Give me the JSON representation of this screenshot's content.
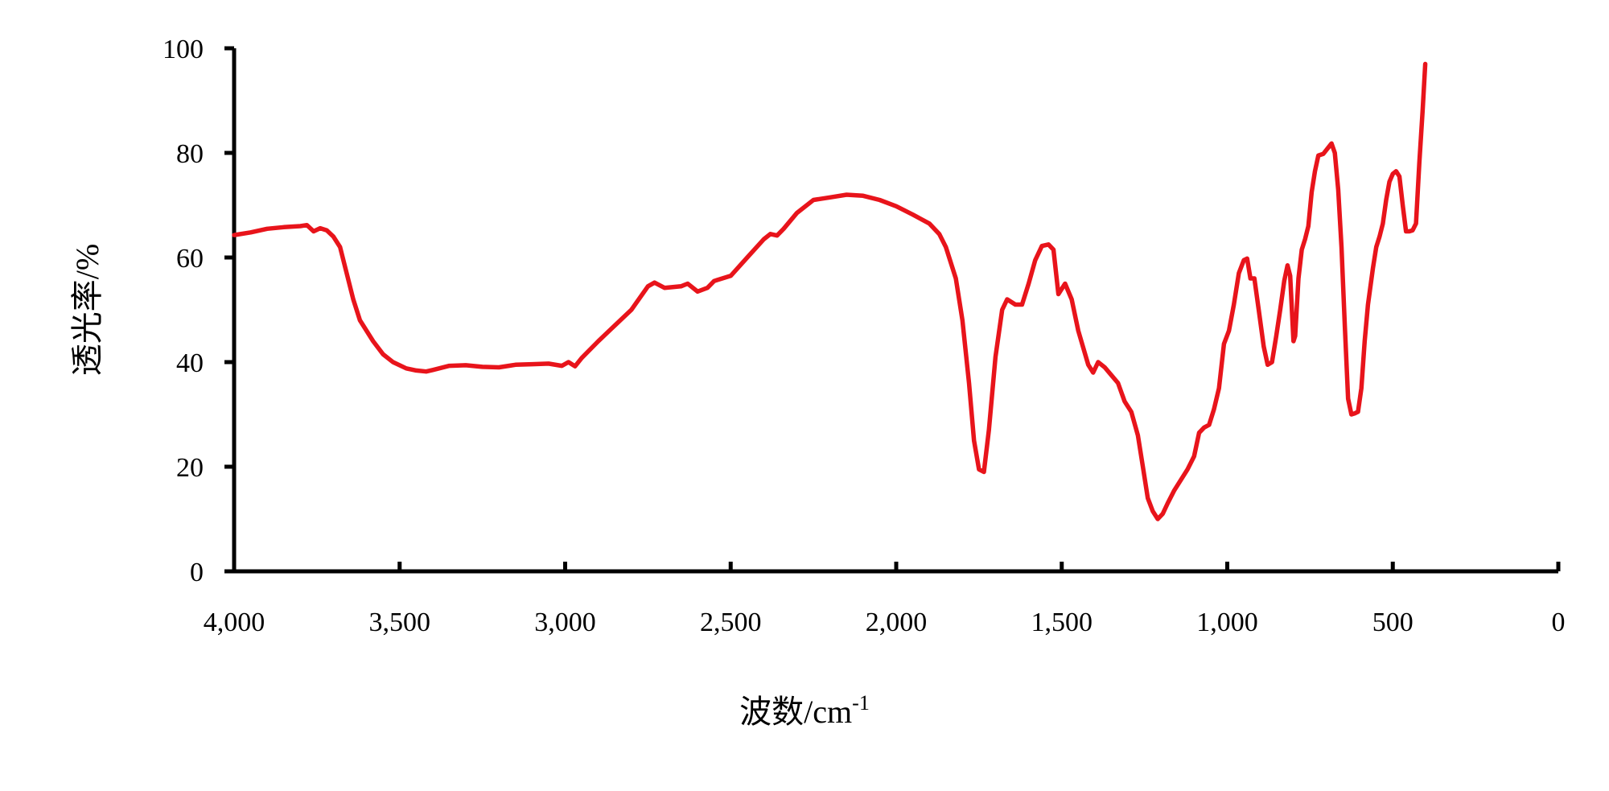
{
  "chart_data": {
    "type": "line",
    "title": "",
    "xlabel": "波数/cm",
    "xlabel_superscript": "-1",
    "ylabel": "透光率/%",
    "xlim": [
      4000,
      0
    ],
    "ylim": [
      0,
      100
    ],
    "x_reversed": true,
    "grid": false,
    "legend": "none",
    "x_ticks": [
      4000,
      3500,
      3000,
      2500,
      2000,
      1500,
      1000,
      500,
      0
    ],
    "x_tick_labels": [
      "4,000",
      "3,500",
      "3,000",
      "2,500",
      "2,000",
      "1,500",
      "1,000",
      "500",
      "0"
    ],
    "y_ticks": [
      0,
      20,
      40,
      60,
      80,
      100
    ],
    "y_tick_labels": [
      "0",
      "20",
      "40",
      "60",
      "80",
      "100"
    ],
    "series": [
      {
        "color": "#e8141b",
        "points": [
          [
            4000,
            64.3
          ],
          [
            3950,
            64.8
          ],
          [
            3900,
            65.5
          ],
          [
            3850,
            65.8
          ],
          [
            3800,
            66.0
          ],
          [
            3780,
            66.2
          ],
          [
            3760,
            65.0
          ],
          [
            3740,
            65.6
          ],
          [
            3720,
            65.2
          ],
          [
            3700,
            64.0
          ],
          [
            3680,
            62.0
          ],
          [
            3660,
            57.0
          ],
          [
            3640,
            52.0
          ],
          [
            3620,
            48.0
          ],
          [
            3600,
            46.0
          ],
          [
            3580,
            44.0
          ],
          [
            3550,
            41.5
          ],
          [
            3520,
            40.0
          ],
          [
            3480,
            38.8
          ],
          [
            3450,
            38.4
          ],
          [
            3420,
            38.2
          ],
          [
            3400,
            38.5
          ],
          [
            3350,
            39.3
          ],
          [
            3300,
            39.4
          ],
          [
            3250,
            39.1
          ],
          [
            3200,
            39.0
          ],
          [
            3150,
            39.5
          ],
          [
            3100,
            39.6
          ],
          [
            3050,
            39.7
          ],
          [
            3010,
            39.3
          ],
          [
            2990,
            40.0
          ],
          [
            2970,
            39.2
          ],
          [
            2950,
            40.8
          ],
          [
            2900,
            44.0
          ],
          [
            2850,
            47.0
          ],
          [
            2800,
            50.0
          ],
          [
            2750,
            54.5
          ],
          [
            2730,
            55.2
          ],
          [
            2700,
            54.2
          ],
          [
            2650,
            54.5
          ],
          [
            2630,
            55.0
          ],
          [
            2600,
            53.5
          ],
          [
            2570,
            54.2
          ],
          [
            2550,
            55.5
          ],
          [
            2500,
            56.5
          ],
          [
            2450,
            60.0
          ],
          [
            2400,
            63.5
          ],
          [
            2380,
            64.5
          ],
          [
            2360,
            64.2
          ],
          [
            2340,
            65.5
          ],
          [
            2300,
            68.5
          ],
          [
            2250,
            71.0
          ],
          [
            2200,
            71.5
          ],
          [
            2150,
            72.0
          ],
          [
            2100,
            71.8
          ],
          [
            2050,
            71.0
          ],
          [
            2000,
            69.8
          ],
          [
            1950,
            68.2
          ],
          [
            1900,
            66.5
          ],
          [
            1870,
            64.5
          ],
          [
            1850,
            62.0
          ],
          [
            1820,
            56.0
          ],
          [
            1800,
            48.0
          ],
          [
            1780,
            36.0
          ],
          [
            1765,
            25.0
          ],
          [
            1750,
            19.5
          ],
          [
            1735,
            19.0
          ],
          [
            1720,
            27.0
          ],
          [
            1700,
            41.0
          ],
          [
            1680,
            50.0
          ],
          [
            1665,
            52.0
          ],
          [
            1640,
            51.0
          ],
          [
            1620,
            51.0
          ],
          [
            1600,
            55.0
          ],
          [
            1580,
            59.5
          ],
          [
            1560,
            62.2
          ],
          [
            1540,
            62.5
          ],
          [
            1525,
            61.5
          ],
          [
            1510,
            53.0
          ],
          [
            1490,
            55.0
          ],
          [
            1470,
            52.0
          ],
          [
            1450,
            46.0
          ],
          [
            1420,
            39.5
          ],
          [
            1405,
            38.0
          ],
          [
            1390,
            40.0
          ],
          [
            1370,
            39.0
          ],
          [
            1350,
            37.5
          ],
          [
            1330,
            36.0
          ],
          [
            1310,
            32.5
          ],
          [
            1290,
            30.5
          ],
          [
            1270,
            26.0
          ],
          [
            1255,
            20.0
          ],
          [
            1240,
            14.0
          ],
          [
            1225,
            11.5
          ],
          [
            1210,
            10.0
          ],
          [
            1195,
            11.0
          ],
          [
            1180,
            13.0
          ],
          [
            1160,
            15.5
          ],
          [
            1140,
            17.5
          ],
          [
            1120,
            19.5
          ],
          [
            1100,
            22.0
          ],
          [
            1085,
            26.5
          ],
          [
            1070,
            27.5
          ],
          [
            1055,
            28.0
          ],
          [
            1040,
            31.0
          ],
          [
            1025,
            35.0
          ],
          [
            1010,
            43.5
          ],
          [
            995,
            46.0
          ],
          [
            980,
            51.0
          ],
          [
            965,
            57.0
          ],
          [
            950,
            59.5
          ],
          [
            940,
            59.8
          ],
          [
            930,
            56.0
          ],
          [
            918,
            56.0
          ],
          [
            905,
            50.0
          ],
          [
            890,
            43.0
          ],
          [
            878,
            39.5
          ],
          [
            865,
            40.0
          ],
          [
            852,
            45.0
          ],
          [
            840,
            50.0
          ],
          [
            828,
            55.5
          ],
          [
            818,
            58.5
          ],
          [
            810,
            56.5
          ],
          [
            800,
            44.0
          ],
          [
            795,
            45.0
          ],
          [
            785,
            56.0
          ],
          [
            775,
            61.5
          ],
          [
            765,
            63.5
          ],
          [
            755,
            66.0
          ],
          [
            745,
            72.5
          ],
          [
            735,
            76.5
          ],
          [
            725,
            79.5
          ],
          [
            710,
            79.8
          ],
          [
            695,
            81.0
          ],
          [
            685,
            81.8
          ],
          [
            675,
            80.0
          ],
          [
            665,
            73.0
          ],
          [
            655,
            62.0
          ],
          [
            645,
            47.0
          ],
          [
            635,
            33.0
          ],
          [
            625,
            30.0
          ],
          [
            615,
            30.2
          ],
          [
            605,
            30.5
          ],
          [
            595,
            35.0
          ],
          [
            585,
            44.0
          ],
          [
            575,
            51.0
          ],
          [
            560,
            58.0
          ],
          [
            550,
            62.0
          ],
          [
            540,
            64.0
          ],
          [
            530,
            66.5
          ],
          [
            520,
            71.0
          ],
          [
            510,
            74.5
          ],
          [
            500,
            76.0
          ],
          [
            490,
            76.5
          ],
          [
            480,
            75.5
          ],
          [
            470,
            70.0
          ],
          [
            460,
            65.0
          ],
          [
            450,
            65.0
          ],
          [
            440,
            65.2
          ],
          [
            430,
            66.5
          ],
          [
            420,
            78.0
          ],
          [
            410,
            88.0
          ],
          [
            402,
            97.0
          ]
        ]
      }
    ]
  }
}
